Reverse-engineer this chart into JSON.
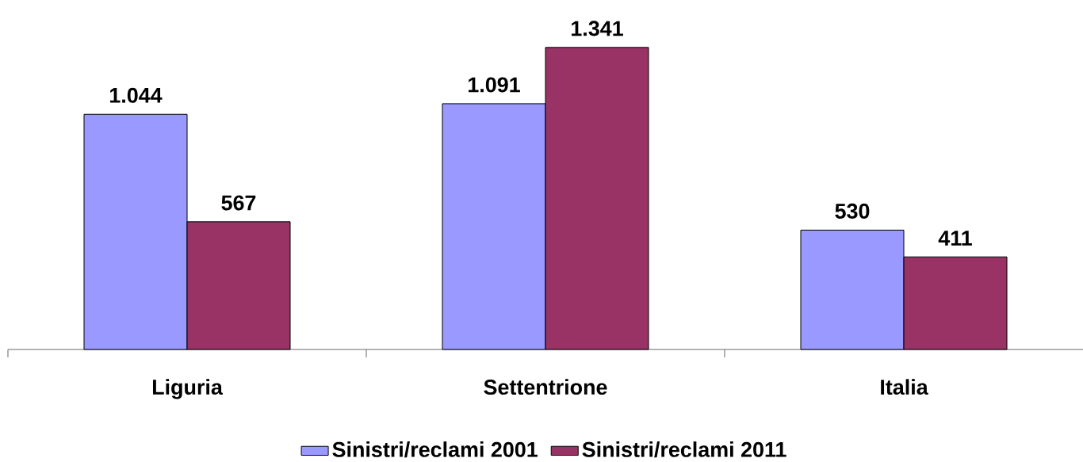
{
  "chart_data": {
    "type": "bar",
    "categories": [
      "Liguria",
      "Settentrione",
      "Italia"
    ],
    "series": [
      {
        "name": "Sinistri/reclami 2001",
        "color": "#9999ff",
        "values": [
          1044,
          1091,
          530
        ],
        "value_labels": [
          "1.044",
          "1.091",
          "530"
        ]
      },
      {
        "name": "Sinistri/reclami 2011",
        "color": "#993366",
        "values": [
          567,
          1341,
          411
        ],
        "value_labels": [
          "567",
          "1.341",
          "411"
        ]
      }
    ],
    "legend": "bottom"
  }
}
